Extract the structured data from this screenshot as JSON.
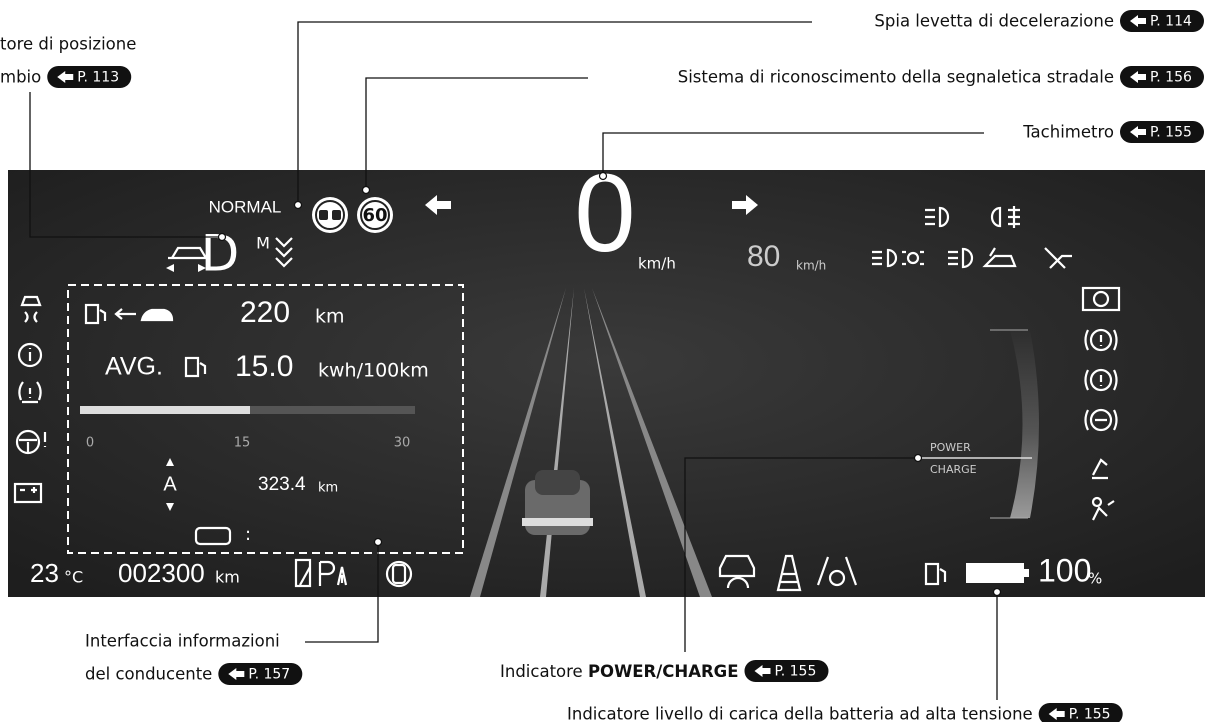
{
  "callouts": {
    "gear_position": {
      "lines": [
        "tore di posizione",
        "mbio"
      ],
      "page_ref": "P. 113"
    },
    "deceleration": {
      "label": "Spia levetta di decelerazione",
      "page_ref": "P. 114"
    },
    "traffic_sign": {
      "label": "Sistema di riconoscimento della segnaletica stradale",
      "page_ref": "P. 156"
    },
    "speedometer": {
      "label": "Tachimetro",
      "page_ref": "P. 155"
    },
    "driver_info": {
      "lines": [
        "Interfaccia informazioni",
        "del conducente"
      ],
      "page_ref": "P. 157"
    },
    "power_charge": {
      "label_prefix": "Indicatore",
      "label_bold": "POWER/CHARGE",
      "page_ref": "P. 155"
    },
    "battery": {
      "label": "Indicatore livello di carica della batteria ad alta tensione",
      "page_ref": "P. 155"
    }
  },
  "dashboard": {
    "drive_mode": "NORMAL",
    "gear": "D",
    "gear_mode": "M",
    "speed_limit": "60",
    "speed": "0",
    "speed_unit": "km/h",
    "cruise_speed": "80",
    "cruise_unit": "km/h",
    "range": "220",
    "range_unit": "km",
    "avg_label": "AVG.",
    "avg_consumption": "15.0",
    "avg_unit": "kwh/100km",
    "scale_labels": [
      "0",
      "15",
      "30"
    ],
    "trip_label": "A",
    "trip_distance": "323.4",
    "trip_unit": "km",
    "clock_separator": ":",
    "outside_temp": "23",
    "temp_unit": "°C",
    "odometer": "002300",
    "odometer_unit": "km",
    "power_label": "POWER",
    "charge_label": "CHARGE",
    "battery_level": "100",
    "battery_unit": "%"
  }
}
